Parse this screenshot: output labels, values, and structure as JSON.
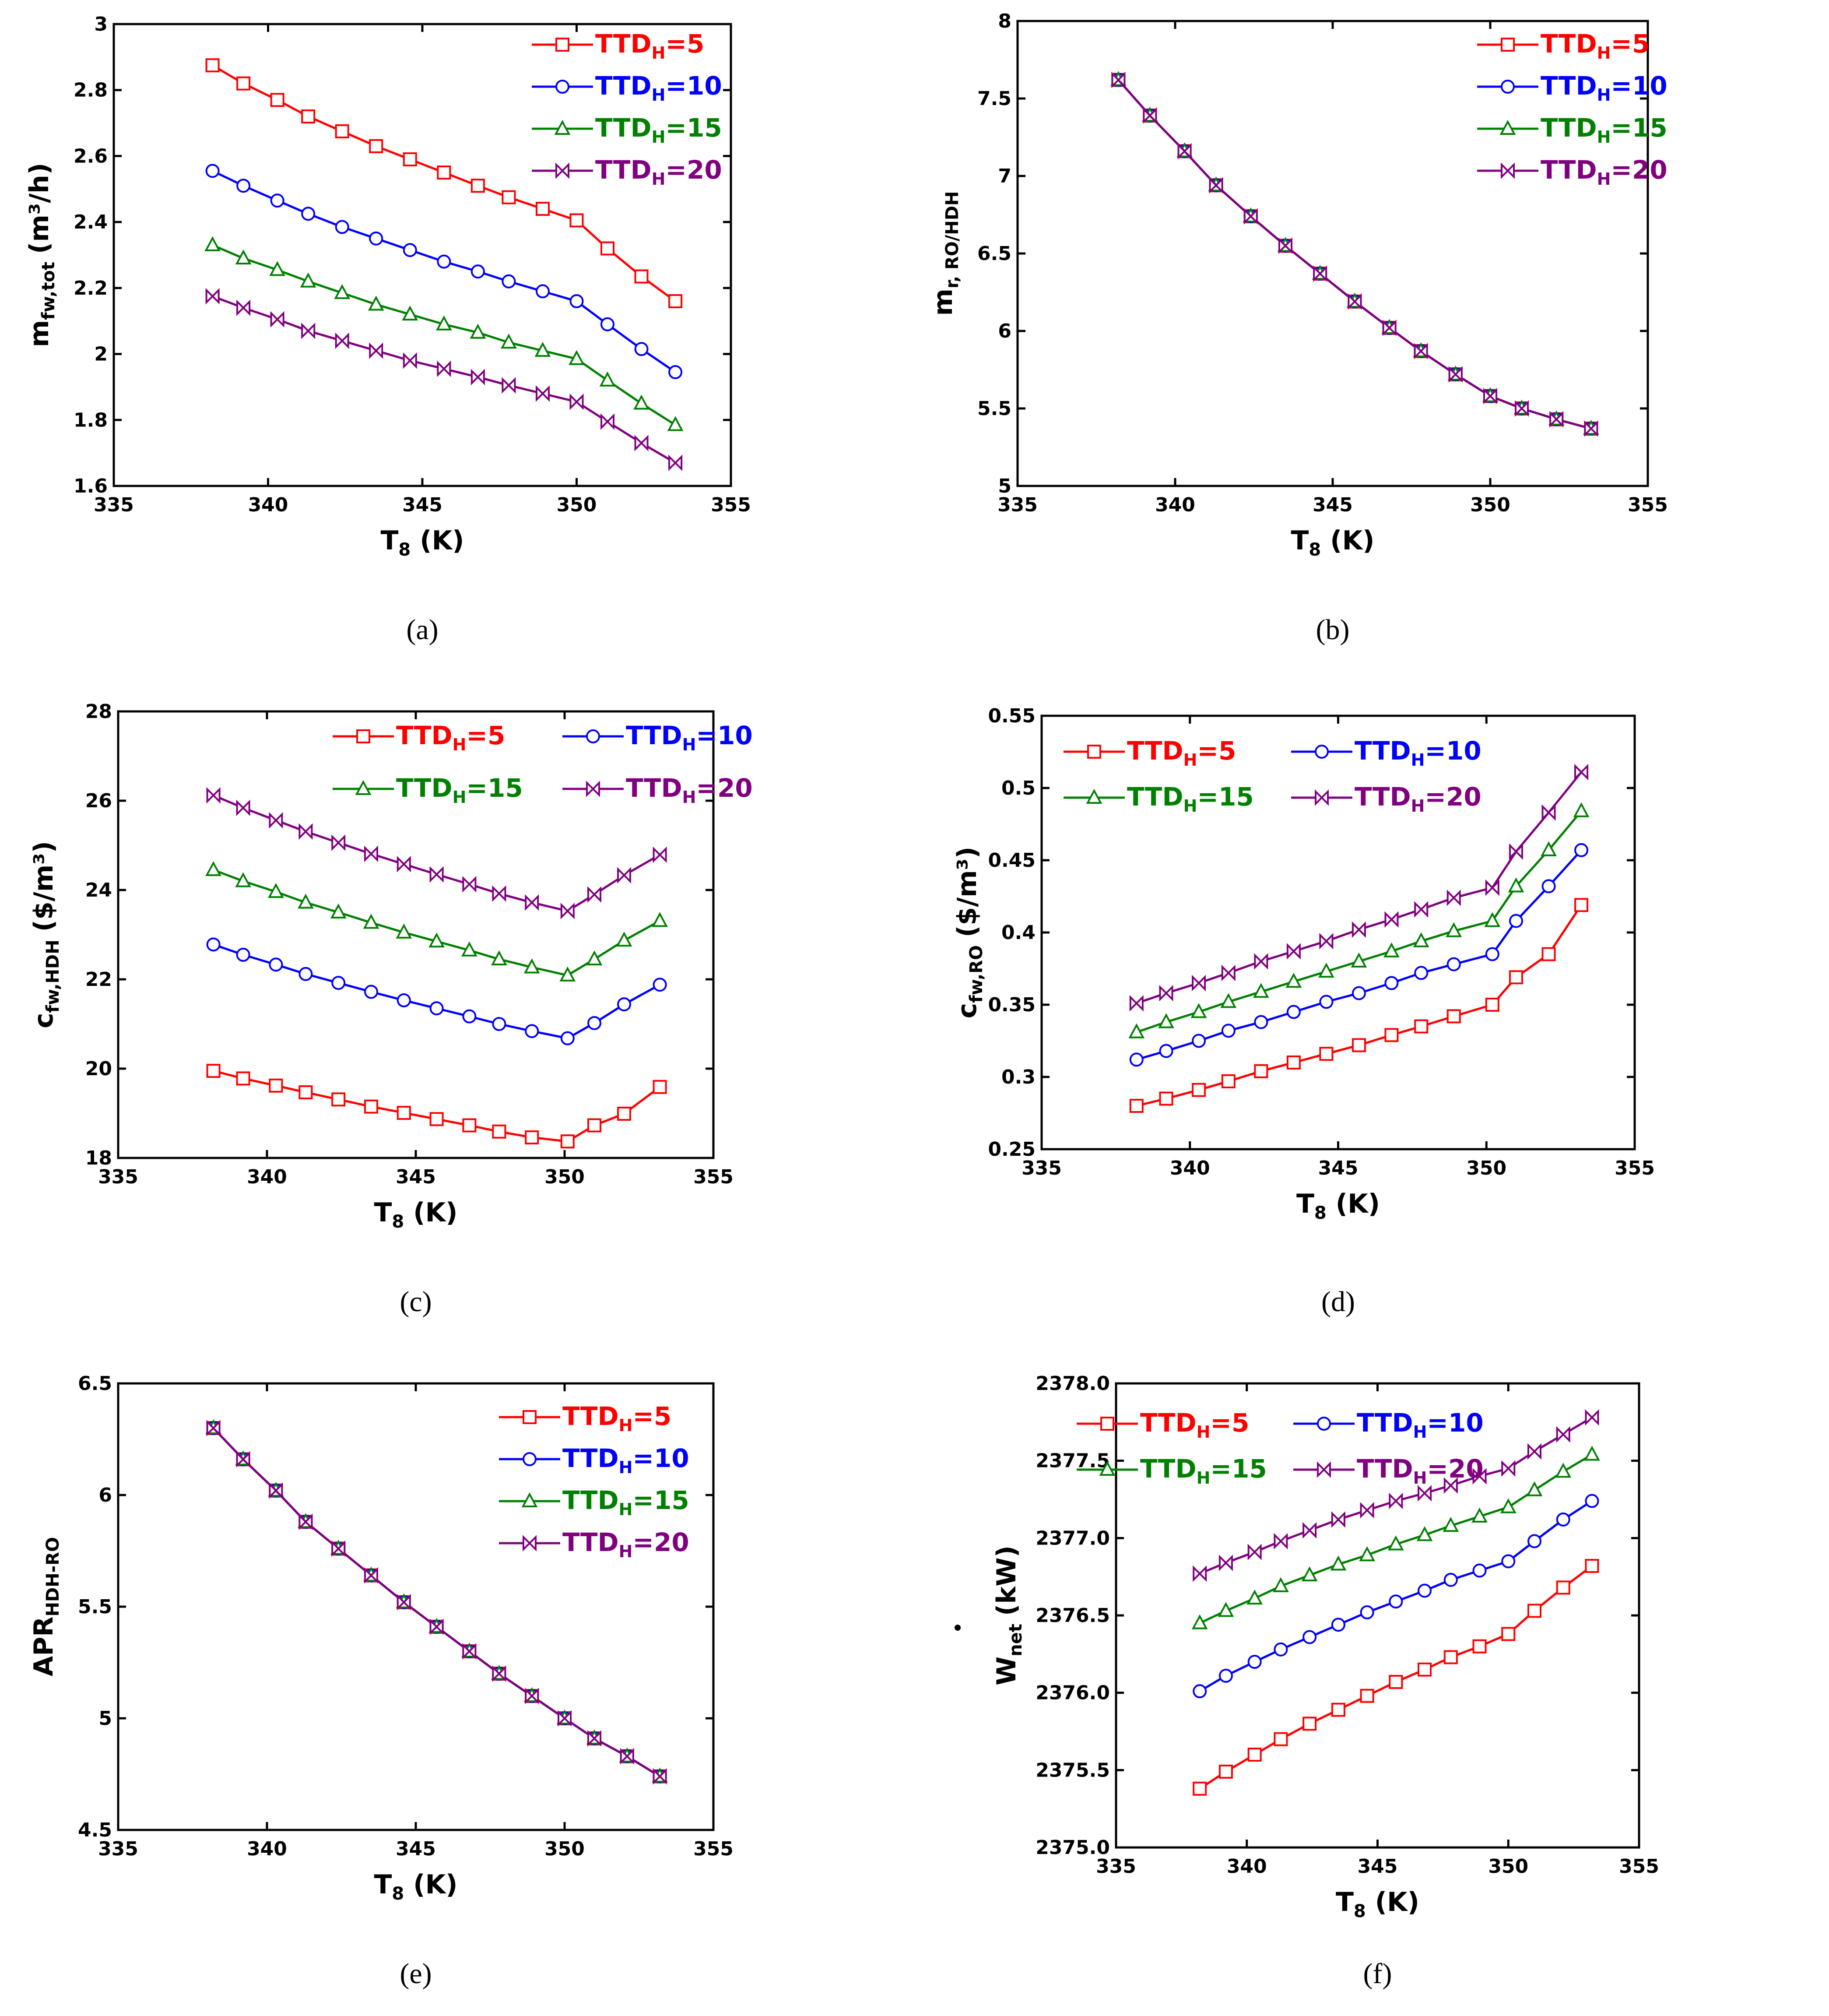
{
  "chart_data": [
    {
      "id": "a",
      "type": "line",
      "caption": "(a)",
      "ylabel_main": "m",
      "ylabel_sub": "fw,tot",
      "ylabel_tail": "(m³/h)",
      "ylabel_dot": true,
      "xlabel_main": "T",
      "xlabel_sub": "8",
      "xlabel_tail": " (K)",
      "xlim": [
        335,
        355
      ],
      "ylim": [
        1.6,
        3.0
      ],
      "xticks": [
        335,
        340,
        345,
        350,
        355
      ],
      "xtick_labels": [
        "335",
        "340",
        "345",
        "350",
        "355"
      ],
      "yticks": [
        1.6,
        1.8,
        2.0,
        2.2,
        2.4,
        2.6,
        2.8,
        3.0
      ],
      "ytick_labels": [
        "1.6",
        "1.8",
        "2",
        "2.2",
        "2.4",
        "2.6",
        "2.8",
        "3"
      ],
      "legend_layout": "column",
      "legend_position": "top-right",
      "x": [
        338.2,
        339.2,
        340.3,
        341.3,
        342.4,
        343.5,
        344.6,
        345.7,
        346.8,
        347.8,
        348.9,
        350.0,
        351.0,
        352.1,
        353.2
      ],
      "series": [
        {
          "name": "TTD",
          "name_sub": "H",
          "name_tail": "=5",
          "color": "#ff0000",
          "marker": "square",
          "values": [
            2.875,
            2.82,
            2.77,
            2.72,
            2.675,
            2.63,
            2.59,
            2.55,
            2.51,
            2.475,
            2.44,
            2.405,
            2.32,
            2.235,
            2.16
          ]
        },
        {
          "name": "TTD",
          "name_sub": "H",
          "name_tail": "=10",
          "color": "#0000ff",
          "marker": "circle",
          "values": [
            2.555,
            2.51,
            2.465,
            2.425,
            2.385,
            2.35,
            2.315,
            2.28,
            2.25,
            2.22,
            2.19,
            2.16,
            2.09,
            2.015,
            1.945
          ]
        },
        {
          "name": "TTD",
          "name_sub": "H",
          "name_tail": "=15",
          "color": "#008000",
          "marker": "triangle",
          "values": [
            2.33,
            2.29,
            2.255,
            2.22,
            2.185,
            2.15,
            2.12,
            2.09,
            2.065,
            2.035,
            2.01,
            1.985,
            1.92,
            1.85,
            1.785
          ]
        },
        {
          "name": "TTD",
          "name_sub": "H",
          "name_tail": "=20",
          "color": "#800080",
          "marker": "bowtie",
          "values": [
            2.175,
            2.14,
            2.105,
            2.07,
            2.04,
            2.01,
            1.98,
            1.955,
            1.93,
            1.905,
            1.88,
            1.855,
            1.795,
            1.73,
            1.67
          ]
        }
      ]
    },
    {
      "id": "b",
      "type": "line",
      "caption": "(b)",
      "ylabel_main": "m",
      "ylabel_sub": "r, RO/HDH",
      "ylabel_tail": "",
      "ylabel_dot": false,
      "xlabel_main": "T",
      "xlabel_sub": "8",
      "xlabel_tail": " (K)",
      "xlim": [
        335,
        355
      ],
      "ylim": [
        5.0,
        8.0
      ],
      "xticks": [
        335,
        340,
        345,
        350,
        355
      ],
      "xtick_labels": [
        "335",
        "340",
        "345",
        "350",
        "355"
      ],
      "yticks": [
        5.0,
        5.5,
        6.0,
        6.5,
        7.0,
        7.5,
        8.0
      ],
      "ytick_labels": [
        "5",
        "5.5",
        "6",
        "6.5",
        "7",
        "7.5",
        "8"
      ],
      "legend_layout": "column",
      "legend_position": "top-right",
      "x": [
        338.2,
        339.2,
        340.3,
        341.3,
        342.4,
        343.5,
        344.6,
        345.7,
        346.8,
        347.8,
        348.9,
        350.0,
        351.0,
        352.1,
        353.2
      ],
      "series": [
        {
          "name": "TTD",
          "name_sub": "H",
          "name_tail": "=5",
          "color": "#ff0000",
          "marker": "square",
          "values": [
            7.62,
            7.39,
            7.16,
            6.94,
            6.74,
            6.55,
            6.37,
            6.19,
            6.02,
            5.87,
            5.72,
            5.58,
            5.5,
            5.43,
            5.37
          ]
        },
        {
          "name": "TTD",
          "name_sub": "H",
          "name_tail": "=10",
          "color": "#0000ff",
          "marker": "circle",
          "values": [
            7.62,
            7.39,
            7.16,
            6.94,
            6.74,
            6.55,
            6.37,
            6.19,
            6.02,
            5.87,
            5.72,
            5.58,
            5.5,
            5.43,
            5.37
          ]
        },
        {
          "name": "TTD",
          "name_sub": "H",
          "name_tail": "=15",
          "color": "#008000",
          "marker": "triangle",
          "values": [
            7.62,
            7.39,
            7.16,
            6.94,
            6.74,
            6.55,
            6.37,
            6.19,
            6.02,
            5.87,
            5.72,
            5.58,
            5.5,
            5.43,
            5.37
          ]
        },
        {
          "name": "TTD",
          "name_sub": "H",
          "name_tail": "=20",
          "color": "#800080",
          "marker": "bowtie",
          "values": [
            7.62,
            7.39,
            7.16,
            6.94,
            6.74,
            6.55,
            6.37,
            6.19,
            6.02,
            5.87,
            5.72,
            5.58,
            5.5,
            5.43,
            5.37
          ]
        }
      ]
    },
    {
      "id": "c",
      "type": "line",
      "caption": "(c)",
      "ylabel_main": "c",
      "ylabel_sub": "fw,HDH",
      "ylabel_tail": "($/m³)",
      "ylabel_dot": false,
      "xlabel_main": "T",
      "xlabel_sub": "8",
      "xlabel_tail": " (K)",
      "xlim": [
        335,
        355
      ],
      "ylim": [
        18,
        28
      ],
      "xticks": [
        335,
        340,
        345,
        350,
        355
      ],
      "xtick_labels": [
        "335",
        "340",
        "345",
        "350",
        "355"
      ],
      "yticks": [
        18,
        20,
        22,
        24,
        26,
        28
      ],
      "ytick_labels": [
        "18",
        "20",
        "22",
        "24",
        "26",
        "28"
      ],
      "legend_layout": "grid",
      "legend_position": "top",
      "x": [
        338.2,
        339.2,
        340.3,
        341.3,
        342.4,
        343.5,
        344.6,
        345.7,
        346.8,
        347.8,
        348.9,
        350.1,
        351.0,
        352.0,
        353.2
      ],
      "series": [
        {
          "name": "TTD",
          "name_sub": "H",
          "name_tail": "=5",
          "color": "#ff0000",
          "marker": "square",
          "values": [
            19.95,
            19.78,
            19.62,
            19.47,
            19.31,
            19.15,
            19.01,
            18.87,
            18.73,
            18.59,
            18.46,
            18.37,
            18.73,
            18.99,
            19.59
          ]
        },
        {
          "name": "TTD",
          "name_sub": "H",
          "name_tail": "=10",
          "color": "#0000ff",
          "marker": "circle",
          "values": [
            22.78,
            22.55,
            22.33,
            22.12,
            21.92,
            21.72,
            21.53,
            21.35,
            21.17,
            21.0,
            20.84,
            20.68,
            21.02,
            21.44,
            21.88
          ]
        },
        {
          "name": "TTD",
          "name_sub": "H",
          "name_tail": "=15",
          "color": "#008000",
          "marker": "triangle",
          "values": [
            24.45,
            24.2,
            23.96,
            23.72,
            23.5,
            23.27,
            23.05,
            22.85,
            22.65,
            22.45,
            22.27,
            22.09,
            22.45,
            22.87,
            23.31
          ]
        },
        {
          "name": "TTD",
          "name_sub": "H",
          "name_tail": "=20",
          "color": "#800080",
          "marker": "bowtie",
          "values": [
            26.12,
            25.84,
            25.56,
            25.31,
            25.06,
            24.81,
            24.58,
            24.35,
            24.13,
            23.92,
            23.72,
            23.53,
            23.9,
            24.33,
            24.79
          ]
        }
      ]
    },
    {
      "id": "d",
      "type": "line",
      "caption": "(d)",
      "ylabel_main": "c",
      "ylabel_sub": "fw,RO",
      "ylabel_tail": "($/m³)",
      "ylabel_dot": false,
      "xlabel_main": "T",
      "xlabel_sub": "8",
      "xlabel_tail": " (K)",
      "xlim": [
        335,
        355
      ],
      "ylim": [
        0.25,
        0.55
      ],
      "xticks": [
        335,
        340,
        345,
        350,
        355
      ],
      "xtick_labels": [
        "335",
        "340",
        "345",
        "350",
        "355"
      ],
      "yticks": [
        0.25,
        0.3,
        0.35,
        0.4,
        0.45,
        0.5,
        0.55
      ],
      "ytick_labels": [
        "0.25",
        "0.3",
        "0.35",
        "0.4",
        "0.45",
        "0.5",
        "0.55"
      ],
      "legend_layout": "grid",
      "legend_position": "top-left",
      "x": [
        338.2,
        339.2,
        340.3,
        341.3,
        342.4,
        343.5,
        344.6,
        345.7,
        346.8,
        347.8,
        348.9,
        350.2,
        351.0,
        352.1,
        353.2
      ],
      "series": [
        {
          "name": "TTD",
          "name_sub": "H",
          "name_tail": "=5",
          "color": "#ff0000",
          "marker": "square",
          "values": [
            0.28,
            0.285,
            0.291,
            0.297,
            0.304,
            0.31,
            0.316,
            0.322,
            0.329,
            0.335,
            0.342,
            0.35,
            0.369,
            0.385,
            0.419
          ]
        },
        {
          "name": "TTD",
          "name_sub": "H",
          "name_tail": "=10",
          "color": "#0000ff",
          "marker": "circle",
          "values": [
            0.312,
            0.318,
            0.325,
            0.332,
            0.338,
            0.345,
            0.352,
            0.358,
            0.365,
            0.372,
            0.378,
            0.385,
            0.408,
            0.432,
            0.457
          ]
        },
        {
          "name": "TTD",
          "name_sub": "H",
          "name_tail": "=15",
          "color": "#008000",
          "marker": "triangle",
          "values": [
            0.331,
            0.338,
            0.345,
            0.352,
            0.359,
            0.366,
            0.373,
            0.38,
            0.387,
            0.394,
            0.401,
            0.408,
            0.432,
            0.457,
            0.484
          ]
        },
        {
          "name": "TTD",
          "name_sub": "H",
          "name_tail": "=20",
          "color": "#800080",
          "marker": "bowtie",
          "values": [
            0.351,
            0.358,
            0.365,
            0.372,
            0.38,
            0.387,
            0.394,
            0.402,
            0.409,
            0.416,
            0.424,
            0.431,
            0.456,
            0.483,
            0.511
          ]
        }
      ]
    },
    {
      "id": "e",
      "type": "line",
      "caption": "(e)",
      "ylabel_main": "APR",
      "ylabel_sub": "HDH-RO",
      "ylabel_tail": "",
      "ylabel_dot": false,
      "xlabel_main": "T",
      "xlabel_sub": "8",
      "xlabel_tail": " (K)",
      "xlim": [
        335,
        355
      ],
      "ylim": [
        4.5,
        6.5
      ],
      "xticks": [
        335,
        340,
        345,
        350,
        355
      ],
      "xtick_labels": [
        "335",
        "340",
        "345",
        "350",
        "355"
      ],
      "yticks": [
        4.5,
        5.0,
        5.5,
        6.0,
        6.5
      ],
      "ytick_labels": [
        "4.5",
        "5",
        "5.5",
        "6",
        "6.5"
      ],
      "legend_layout": "column",
      "legend_position": "top-right",
      "x": [
        338.2,
        339.2,
        340.3,
        341.3,
        342.4,
        343.5,
        344.6,
        345.7,
        346.8,
        347.8,
        348.9,
        350.0,
        351.0,
        352.1,
        353.2
      ],
      "series": [
        {
          "name": "TTD",
          "name_sub": "H",
          "name_tail": "=5",
          "color": "#ff0000",
          "marker": "square",
          "values": [
            6.3,
            6.16,
            6.02,
            5.88,
            5.76,
            5.64,
            5.52,
            5.41,
            5.3,
            5.2,
            5.1,
            5.0,
            4.91,
            4.83,
            4.74
          ]
        },
        {
          "name": "TTD",
          "name_sub": "H",
          "name_tail": "=10",
          "color": "#0000ff",
          "marker": "circle",
          "values": [
            6.3,
            6.16,
            6.02,
            5.88,
            5.76,
            5.64,
            5.52,
            5.41,
            5.3,
            5.2,
            5.1,
            5.0,
            4.91,
            4.83,
            4.74
          ]
        },
        {
          "name": "TTD",
          "name_sub": "H",
          "name_tail": "=15",
          "color": "#008000",
          "marker": "triangle",
          "values": [
            6.3,
            6.16,
            6.02,
            5.88,
            5.76,
            5.64,
            5.52,
            5.41,
            5.3,
            5.2,
            5.1,
            5.0,
            4.91,
            4.83,
            4.74
          ]
        },
        {
          "name": "TTD",
          "name_sub": "H",
          "name_tail": "=20",
          "color": "#800080",
          "marker": "bowtie",
          "values": [
            6.3,
            6.16,
            6.02,
            5.88,
            5.76,
            5.64,
            5.52,
            5.41,
            5.3,
            5.2,
            5.1,
            5.0,
            4.91,
            4.83,
            4.74
          ]
        }
      ]
    },
    {
      "id": "f",
      "type": "line",
      "caption": "(f)",
      "ylabel_main": "W",
      "ylabel_sub": "net",
      "ylabel_tail": "(kW)",
      "ylabel_dot": true,
      "xlabel_main": "T",
      "xlabel_sub": "8",
      "xlabel_tail": " (K)",
      "xlim": [
        335,
        355
      ],
      "ylim": [
        2375.0,
        2378.0
      ],
      "xticks": [
        335,
        340,
        345,
        350,
        355
      ],
      "xtick_labels": [
        "335",
        "340",
        "345",
        "350",
        "355"
      ],
      "yticks": [
        2375.0,
        2375.5,
        2376.0,
        2376.5,
        2377.0,
        2377.5,
        2378.0
      ],
      "ytick_labels": [
        "2375.0",
        "2375.5",
        "2376.0",
        "2376.5",
        "2377.0",
        "2377.5",
        "2378.0"
      ],
      "legend_layout": "grid",
      "legend_position": "top-left",
      "x": [
        338.2,
        339.2,
        340.3,
        341.3,
        342.4,
        343.5,
        344.6,
        345.7,
        346.8,
        347.8,
        348.9,
        350.0,
        351.0,
        352.1,
        353.2
      ],
      "series": [
        {
          "name": "TTD",
          "name_sub": "H",
          "name_tail": "=5",
          "color": "#ff0000",
          "marker": "square",
          "values": [
            2375.38,
            2375.49,
            2375.6,
            2375.7,
            2375.8,
            2375.89,
            2375.98,
            2376.07,
            2376.15,
            2376.23,
            2376.3,
            2376.38,
            2376.53,
            2376.68,
            2376.82
          ]
        },
        {
          "name": "TTD",
          "name_sub": "H",
          "name_tail": "=10",
          "color": "#0000ff",
          "marker": "circle",
          "values": [
            2376.01,
            2376.11,
            2376.2,
            2376.28,
            2376.36,
            2376.44,
            2376.52,
            2376.59,
            2376.66,
            2376.73,
            2376.79,
            2376.85,
            2376.98,
            2377.12,
            2377.24
          ]
        },
        {
          "name": "TTD",
          "name_sub": "H",
          "name_tail": "=15",
          "color": "#008000",
          "marker": "triangle",
          "values": [
            2376.45,
            2376.53,
            2376.61,
            2376.69,
            2376.76,
            2376.83,
            2376.89,
            2376.96,
            2377.02,
            2377.08,
            2377.14,
            2377.2,
            2377.31,
            2377.43,
            2377.54
          ]
        },
        {
          "name": "TTD",
          "name_sub": "H",
          "name_tail": "=20",
          "color": "#800080",
          "marker": "bowtie",
          "values": [
            2376.77,
            2376.84,
            2376.91,
            2376.98,
            2377.05,
            2377.12,
            2377.18,
            2377.24,
            2377.29,
            2377.34,
            2377.4,
            2377.45,
            2377.56,
            2377.67,
            2377.78
          ]
        }
      ]
    }
  ]
}
